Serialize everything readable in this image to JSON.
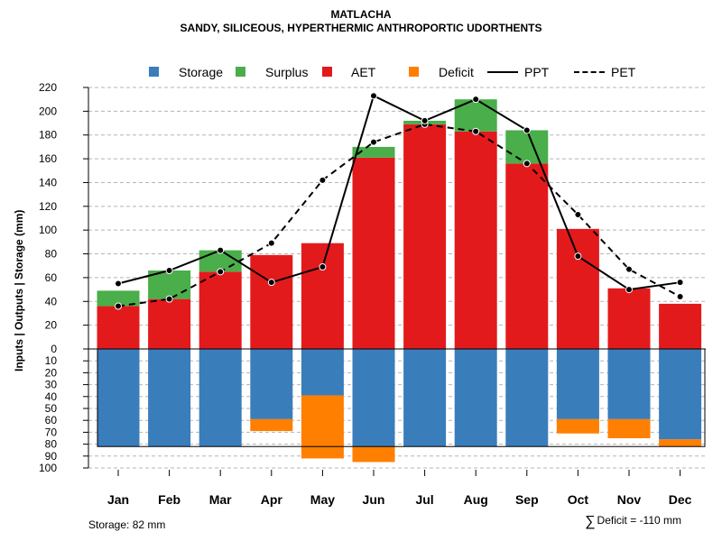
{
  "chart_data": {
    "type": "bar+line",
    "title": "MATLACHA",
    "subtitle": "SANDY, SILICEOUS, HYPERTHERMIC ANTHROPORTIC UDORTHENTS",
    "ylabel": "Inputs | Outputs | Storage    (mm)",
    "categories": [
      "Jan",
      "Feb",
      "Mar",
      "Apr",
      "May",
      "Jun",
      "Jul",
      "Aug",
      "Sep",
      "Oct",
      "Nov",
      "Dec"
    ],
    "upper_ticks": [
      0,
      20,
      40,
      60,
      80,
      100,
      120,
      140,
      160,
      180,
      200,
      220
    ],
    "lower_ticks": [
      0,
      10,
      20,
      30,
      40,
      50,
      60,
      70,
      80,
      90,
      100
    ],
    "upper_ylim": [
      0,
      220
    ],
    "lower_ylim": [
      0,
      100
    ],
    "legend": [
      "Storage",
      "Surplus",
      "AET",
      "Deficit",
      "PPT",
      "PET"
    ],
    "colors": {
      "storage": "#3a7dbb",
      "surplus": "#4aae4a",
      "aet": "#e31a1c",
      "deficit": "#ff7f00"
    },
    "series": [
      {
        "name": "AET",
        "values": [
          36,
          42,
          65,
          79,
          89,
          161,
          189,
          183,
          156,
          101,
          51,
          38
        ]
      },
      {
        "name": "Surplus",
        "values": [
          13,
          24,
          18,
          0,
          0,
          9,
          3,
          27,
          28,
          0,
          0,
          0
        ]
      },
      {
        "name": "Storage",
        "values": [
          82,
          82,
          82,
          59,
          39,
          82,
          82,
          82,
          82,
          59,
          59,
          76
        ]
      },
      {
        "name": "Deficit",
        "values": [
          0,
          0,
          0,
          10,
          53,
          13,
          0,
          0,
          0,
          12,
          16,
          6
        ]
      },
      {
        "name": "PPT",
        "values": [
          55,
          66,
          83,
          56,
          69,
          213,
          192,
          210,
          184,
          78,
          50,
          56
        ]
      },
      {
        "name": "PET",
        "values": [
          36,
          42,
          65,
          89,
          142,
          174,
          189,
          183,
          156,
          113,
          67,
          44
        ]
      }
    ],
    "storage_capacity": 82
  },
  "footer": {
    "storage": "Storage: 82 mm",
    "sigma": "∑",
    "deficit": "Deficit = -110 mm"
  }
}
